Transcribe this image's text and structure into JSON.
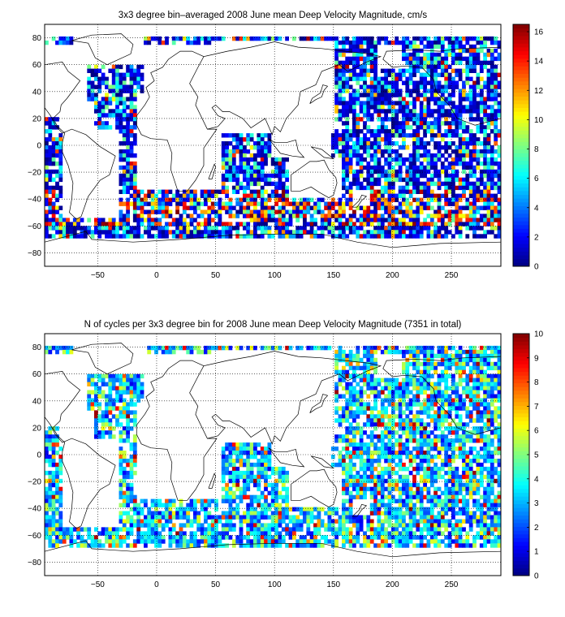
{
  "chart_data": [
    {
      "type": "heatmap",
      "title": "3x3 degree bin–averaged 2008 June mean Deep Velocity Magnitude, cm/s",
      "xlabel": "",
      "ylabel": "",
      "x_ticks": [
        -50,
        0,
        50,
        100,
        150,
        200,
        250
      ],
      "y_ticks": [
        80,
        60,
        40,
        20,
        0,
        -20,
        -40,
        -60,
        -80
      ],
      "xlim": [
        -95,
        292
      ],
      "ylim": [
        -90,
        90
      ],
      "grid": true,
      "colormap": "jet",
      "colorbar": {
        "min": 0,
        "max": 16.5,
        "ticks": [
          0,
          2,
          4,
          6,
          8,
          10,
          12,
          14,
          16
        ]
      },
      "bin_size_deg": 3
    },
    {
      "type": "heatmap",
      "title": "N of cycles per 3x3 degree bin for 2008 June mean Deep Velocity Magnitude (7351 in total)",
      "xlabel": "",
      "ylabel": "",
      "x_ticks": [
        -50,
        0,
        50,
        100,
        150,
        200,
        250
      ],
      "y_ticks": [
        80,
        60,
        40,
        20,
        0,
        -20,
        -40,
        -60,
        -80
      ],
      "xlim": [
        -95,
        292
      ],
      "ylim": [
        -90,
        90
      ],
      "grid": true,
      "colormap": "jet",
      "colorbar": {
        "min": 0,
        "max": 10,
        "ticks": [
          0,
          1,
          2,
          3,
          4,
          5,
          6,
          7,
          8,
          9,
          10
        ]
      },
      "bin_size_deg": 3
    }
  ]
}
